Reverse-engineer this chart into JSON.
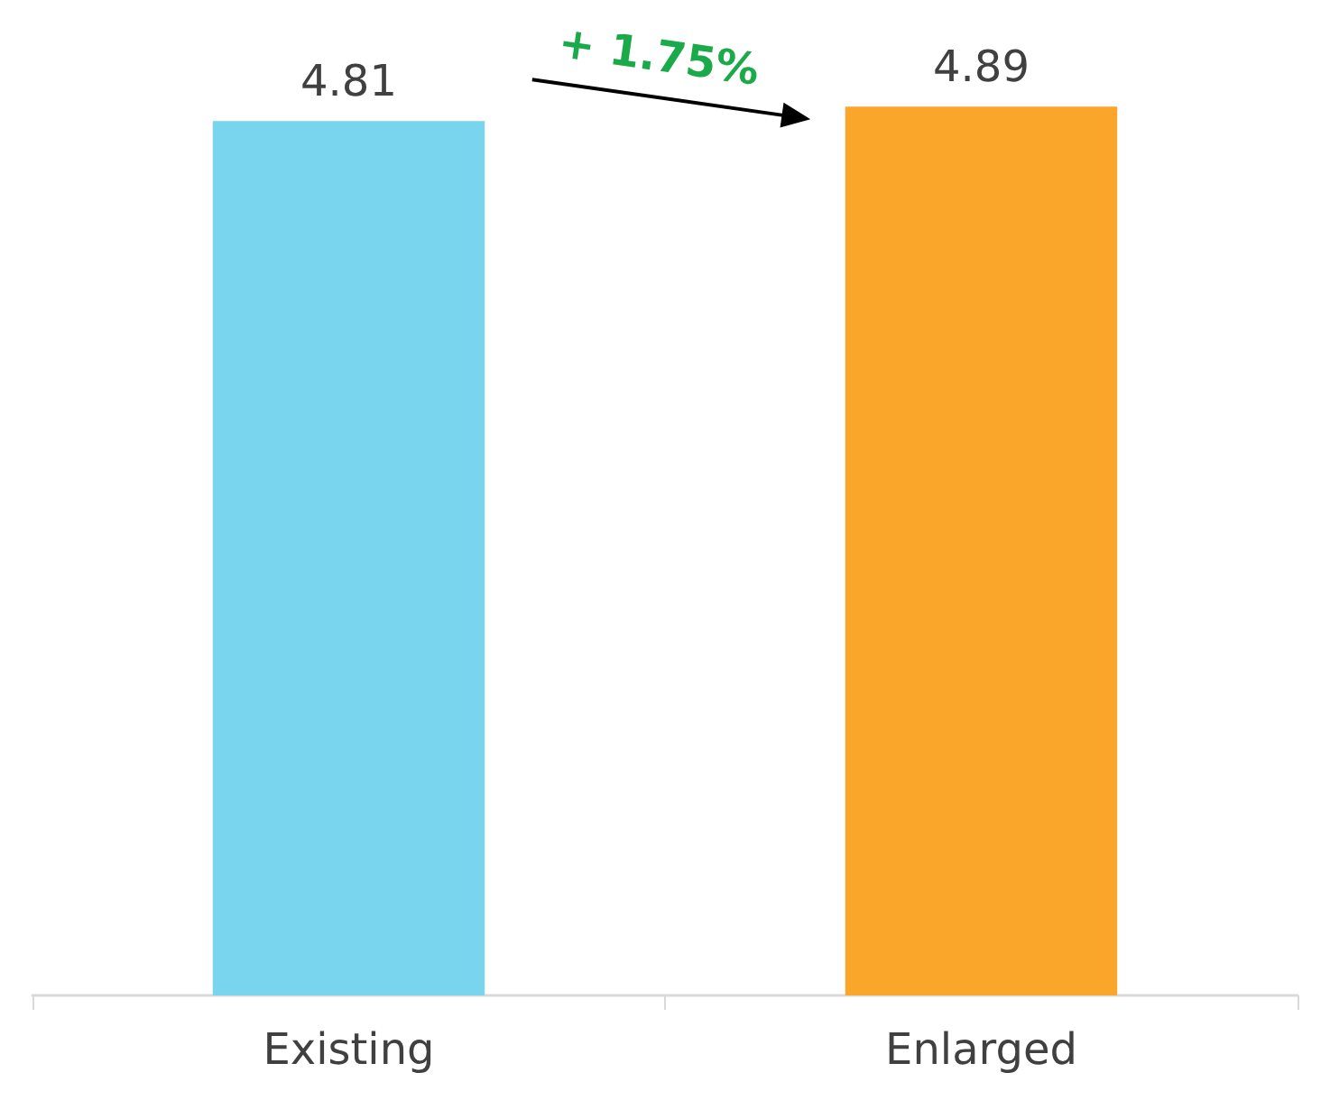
{
  "chart_data": {
    "type": "bar",
    "categories": [
      "Existing",
      "Enlarged"
    ],
    "values": [
      4.81,
      4.89
    ],
    "colors": [
      "#79d5ee",
      "#f9a62b"
    ],
    "data_labels": true,
    "tick_labels": "x",
    "grid": false,
    "annotations": [
      "+ 1.75%"
    ]
  }
}
